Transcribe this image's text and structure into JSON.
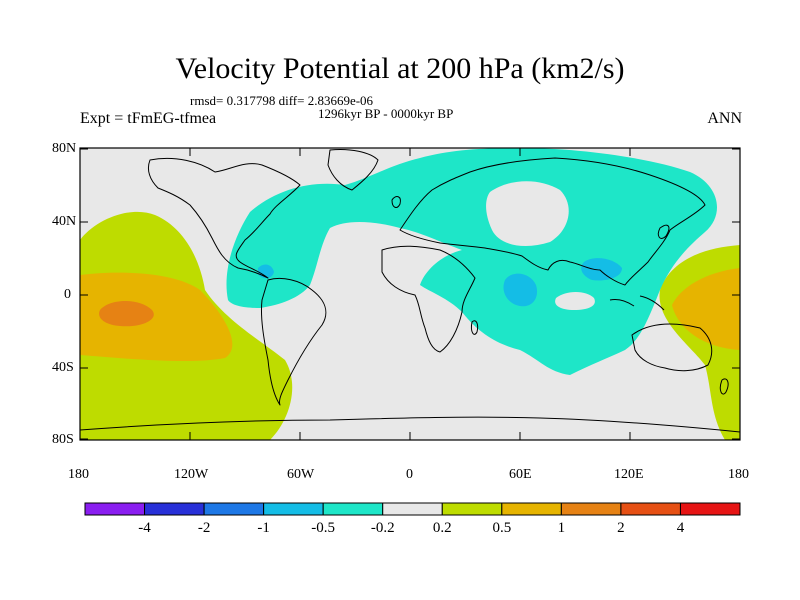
{
  "title": "Velocity Potential at 200 hPa (km2/s)",
  "stats": "rmsd= 0.317798 diff= 2.83669e-06",
  "period": "1296kyr BP - 0000kyr BP",
  "left_label": "Expt = tFmEG-tfmea",
  "right_label": "ANN",
  "lat_ticks": [
    "80N",
    "40N",
    "0",
    "40S",
    "80S"
  ],
  "lon_ticks": [
    "180",
    "120W",
    "60W",
    "0",
    "60E",
    "120E",
    "180"
  ],
  "colorbar": {
    "colors": [
      "#8a1ef0",
      "#2830d8",
      "#1e78e6",
      "#14bde6",
      "#1ee6c8",
      "#e8e8e8",
      "#bedc00",
      "#e6b400",
      "#e68214",
      "#e65014",
      "#e61414"
    ],
    "labels": [
      "-4",
      "-2",
      "-1",
      "-0.5",
      "-0.2",
      "0.2",
      "0.5",
      "1",
      "2",
      "4"
    ]
  },
  "legend_colors": {
    "neutral": "#e8e8e8",
    "neg_weak": "#1ee6c8",
    "neg_mod": "#14bde6",
    "neg_strong": "#1e78e6",
    "pos_weak": "#bedc00",
    "pos_mod": "#e6b400",
    "pos_strong": "#e68214"
  }
}
